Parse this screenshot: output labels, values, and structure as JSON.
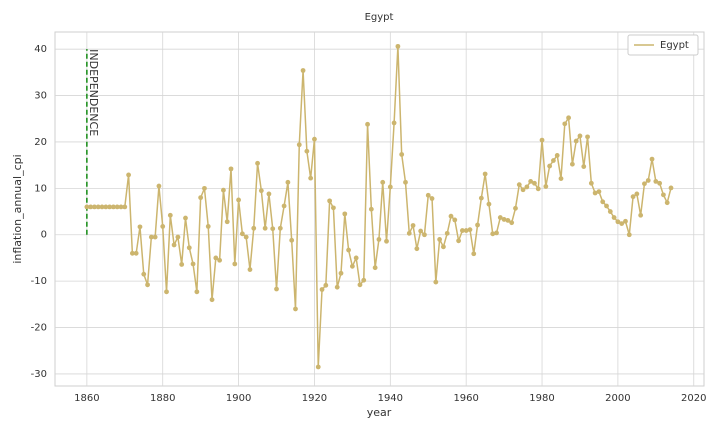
{
  "chart_data": {
    "type": "line",
    "title": "Egypt",
    "x_label": "year",
    "y_label": "inflation_annual_cpi",
    "x": [
      1860,
      1861,
      1862,
      1863,
      1864,
      1865,
      1866,
      1867,
      1868,
      1869,
      1870,
      1871,
      1872,
      1873,
      1874,
      1875,
      1876,
      1877,
      1878,
      1879,
      1880,
      1881,
      1882,
      1883,
      1884,
      1885,
      1886,
      1887,
      1888,
      1889,
      1890,
      1891,
      1892,
      1893,
      1894,
      1895,
      1896,
      1897,
      1898,
      1899,
      1900,
      1901,
      1902,
      1903,
      1904,
      1905,
      1906,
      1907,
      1908,
      1909,
      1910,
      1911,
      1912,
      1913,
      1914,
      1915,
      1916,
      1917,
      1918,
      1919,
      1920,
      1921,
      1922,
      1923,
      1924,
      1925,
      1926,
      1927,
      1928,
      1929,
      1930,
      1931,
      1932,
      1933,
      1934,
      1935,
      1936,
      1937,
      1938,
      1939,
      1940,
      1941,
      1942,
      1943,
      1944,
      1945,
      1946,
      1947,
      1948,
      1949,
      1950,
      1951,
      1952,
      1953,
      1954,
      1955,
      1956,
      1957,
      1958,
      1959,
      1960,
      1961,
      1962,
      1963,
      1964,
      1965,
      1966,
      1967,
      1968,
      1969,
      1970,
      1971,
      1972,
      1973,
      1974,
      1975,
      1976,
      1977,
      1978,
      1979,
      1980,
      1981,
      1982,
      1983,
      1984,
      1985,
      1986,
      1987,
      1988,
      1989,
      1990,
      1991,
      1992,
      1993,
      1994,
      1995,
      1996,
      1997,
      1998,
      1999,
      2000,
      2001,
      2002,
      2003,
      2004,
      2005,
      2006,
      2007,
      2008,
      2009,
      2010,
      2011,
      2012,
      2013,
      2014
    ],
    "series": [
      {
        "name": "Egypt",
        "color": "#ccb56e",
        "values": [
          6,
          6,
          6,
          6,
          6,
          6,
          6,
          6,
          6,
          6,
          6,
          12.9,
          -4,
          -4,
          1.7,
          -8.5,
          -10.8,
          -0.5,
          -0.5,
          10.5,
          1.8,
          -12.3,
          4.2,
          -2.2,
          -0.5,
          -6.4,
          3.6,
          -2.8,
          -6.3,
          -12.3,
          8,
          10,
          1.8,
          -14,
          -5,
          -5.5,
          9.6,
          2.8,
          14.2,
          -6.3,
          7.5,
          0.2,
          -0.5,
          -7.5,
          1.4,
          15.4,
          9.5,
          1.4,
          8.8,
          1.3,
          -11.7,
          1.4,
          6.2,
          11.3,
          -1.2,
          -16,
          19.4,
          35.4,
          18,
          12.2,
          20.6,
          -28.5,
          -11.8,
          -10.9,
          7.3,
          5.8,
          -11.3,
          -8.3,
          4.5,
          -3.3,
          -6.8,
          -5,
          -10.8,
          -9.8,
          23.8,
          5.5,
          -7.1,
          -1,
          11.3,
          -1.4,
          10.3,
          24.1,
          40.6,
          17.3,
          11.3,
          0.3,
          2,
          -3,
          0.8,
          0,
          8.5,
          7.8,
          -10.2,
          -1,
          -2.6,
          0.3,
          4,
          3.2,
          -1.3,
          0.9,
          0.9,
          1.1,
          -4.1,
          2.1,
          7.9,
          13.1,
          6.6,
          0.2,
          0.4,
          3.7,
          3.3,
          3.1,
          2.6,
          5.7,
          10.8,
          9.7,
          10.3,
          11.5,
          11.1,
          9.9,
          20.4,
          10.4,
          14.8,
          16,
          17.1,
          12.1,
          23.9,
          25.2,
          15.2,
          20.2,
          21.3,
          14.7,
          21.1,
          11.1,
          9,
          9.3,
          7.1,
          6.2,
          5,
          3.7,
          2.8,
          2.4,
          2.9,
          0,
          8.2,
          8.8,
          4.2,
          11,
          11.7,
          16.3,
          11.5,
          11.1,
          8.6,
          6.9,
          10.1
        ]
      }
    ],
    "annotation": {
      "text": "INDEPENDENCE",
      "x": 1860,
      "y": [
        0,
        40
      ],
      "color": "#138a13"
    },
    "xlim": [
      1851.6,
      2022.7
    ],
    "ylim": [
      -32.6,
      43.7
    ],
    "xticks": [
      1860,
      1880,
      1900,
      1920,
      1940,
      1960,
      1980,
      2000,
      2020
    ],
    "yticks": [
      -30,
      -20,
      -10,
      0,
      10,
      20,
      30,
      40
    ],
    "grid": true,
    "legend": "upper right"
  }
}
